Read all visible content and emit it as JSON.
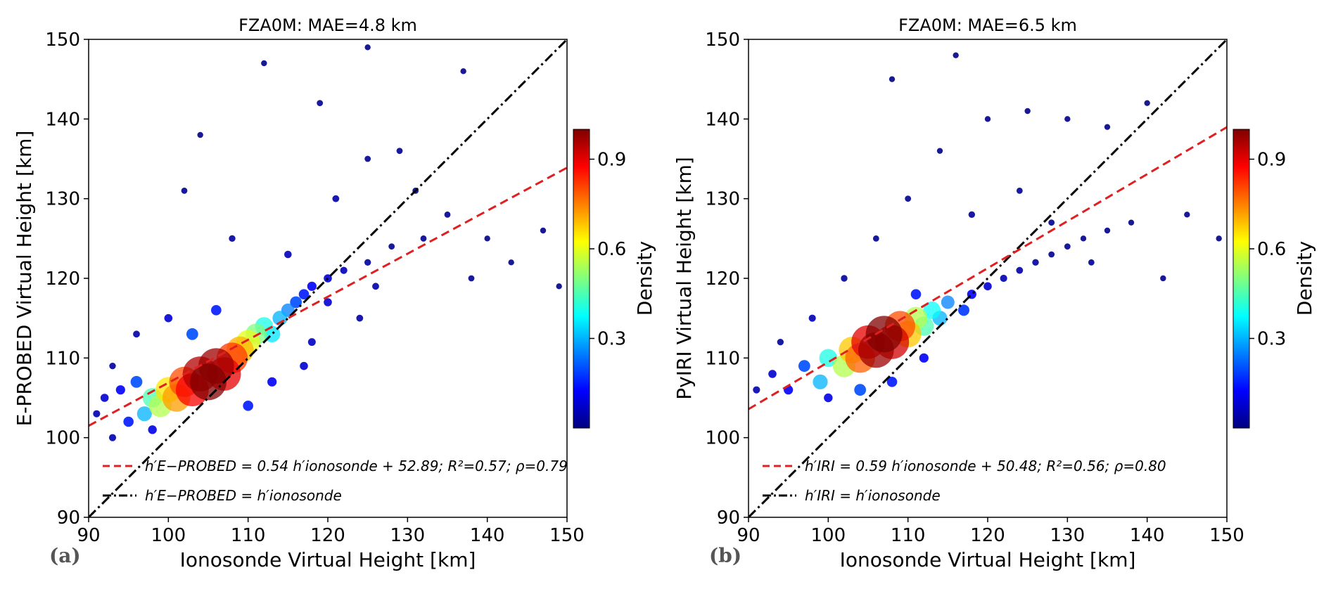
{
  "chart_data": [
    {
      "type": "scatter",
      "panel_label": "(a)",
      "title": "FZA0M: MAE=4.8 km",
      "xlabel": "Ionosonde Virtual Height [km]",
      "ylabel": "E-PROBED Virtual Height [km]",
      "xlim": [
        90,
        150
      ],
      "ylim": [
        90,
        150
      ],
      "xticks": [
        "90",
        "100",
        "110",
        "120",
        "130",
        "140",
        "150"
      ],
      "yticks": [
        "90",
        "100",
        "110",
        "120",
        "130",
        "140",
        "150"
      ],
      "colorbar": {
        "label": "Density",
        "ticks": [
          "0.3",
          "0.6",
          "0.9"
        ],
        "range": [
          0,
          1
        ]
      },
      "legend_location": "lower-right",
      "fit": {
        "slope": 0.54,
        "intercept": 52.89,
        "r2": 0.57,
        "rho": 0.79,
        "color": "#e02020"
      },
      "legend": [
        {
          "style": "dashed",
          "text": "h′E−PROBED = 0.54 h′ionosonde + 52.89; R²=0.57; ρ=0.79"
        },
        {
          "style": "dashdot",
          "text": "h′E−PROBED = h′ionosonde"
        }
      ],
      "density_points": [
        {
          "x": 91,
          "y": 103,
          "d": 0.05
        },
        {
          "x": 92,
          "y": 105,
          "d": 0.08
        },
        {
          "x": 93,
          "y": 100,
          "d": 0.05
        },
        {
          "x": 94,
          "y": 106,
          "d": 0.12
        },
        {
          "x": 95,
          "y": 102,
          "d": 0.15
        },
        {
          "x": 96,
          "y": 107,
          "d": 0.2
        },
        {
          "x": 97,
          "y": 103,
          "d": 0.3
        },
        {
          "x": 98,
          "y": 105,
          "d": 0.45
        },
        {
          "x": 99,
          "y": 104,
          "d": 0.55
        },
        {
          "x": 100,
          "y": 106,
          "d": 0.65
        },
        {
          "x": 101,
          "y": 105,
          "d": 0.72
        },
        {
          "x": 102,
          "y": 107,
          "d": 0.8
        },
        {
          "x": 103,
          "y": 106,
          "d": 0.88
        },
        {
          "x": 104,
          "y": 108,
          "d": 0.95
        },
        {
          "x": 105,
          "y": 107,
          "d": 1.0
        },
        {
          "x": 106,
          "y": 109,
          "d": 0.97
        },
        {
          "x": 107,
          "y": 108,
          "d": 0.9
        },
        {
          "x": 108,
          "y": 110,
          "d": 0.82
        },
        {
          "x": 109,
          "y": 111,
          "d": 0.7
        },
        {
          "x": 110,
          "y": 112,
          "d": 0.6
        },
        {
          "x": 111,
          "y": 113,
          "d": 0.5
        },
        {
          "x": 112,
          "y": 114,
          "d": 0.4
        },
        {
          "x": 113,
          "y": 113,
          "d": 0.35
        },
        {
          "x": 114,
          "y": 115,
          "d": 0.3
        },
        {
          "x": 115,
          "y": 116,
          "d": 0.25
        },
        {
          "x": 116,
          "y": 117,
          "d": 0.2
        },
        {
          "x": 117,
          "y": 118,
          "d": 0.15
        },
        {
          "x": 118,
          "y": 119,
          "d": 0.12
        },
        {
          "x": 120,
          "y": 120,
          "d": 0.08
        },
        {
          "x": 122,
          "y": 121,
          "d": 0.05
        },
        {
          "x": 125,
          "y": 122,
          "d": 0.03
        },
        {
          "x": 128,
          "y": 124,
          "d": 0.02
        },
        {
          "x": 103,
          "y": 113,
          "d": 0.2
        },
        {
          "x": 100,
          "y": 115,
          "d": 0.08
        },
        {
          "x": 106,
          "y": 116,
          "d": 0.15
        },
        {
          "x": 110,
          "y": 104,
          "d": 0.15
        },
        {
          "x": 113,
          "y": 107,
          "d": 0.12
        },
        {
          "x": 118,
          "y": 112,
          "d": 0.07
        },
        {
          "x": 98,
          "y": 101,
          "d": 0.1
        },
        {
          "x": 115,
          "y": 123,
          "d": 0.06
        },
        {
          "x": 121,
          "y": 130,
          "d": 0.04
        },
        {
          "x": 125,
          "y": 135,
          "d": 0.02
        },
        {
          "x": 132,
          "y": 125,
          "d": 0.02
        },
        {
          "x": 138,
          "y": 120,
          "d": 0.02
        },
        {
          "x": 143,
          "y": 122,
          "d": 0.01
        },
        {
          "x": 147,
          "y": 126,
          "d": 0.01
        },
        {
          "x": 135,
          "y": 128,
          "d": 0.02
        },
        {
          "x": 124,
          "y": 115,
          "d": 0.04
        },
        {
          "x": 108,
          "y": 125,
          "d": 0.03
        },
        {
          "x": 102,
          "y": 131,
          "d": 0.02
        },
        {
          "x": 112,
          "y": 147,
          "d": 0.01
        },
        {
          "x": 125,
          "y": 149,
          "d": 0.01
        },
        {
          "x": 119,
          "y": 142,
          "d": 0.02
        },
        {
          "x": 104,
          "y": 138,
          "d": 0.01
        },
        {
          "x": 129,
          "y": 136,
          "d": 0.02
        },
        {
          "x": 140,
          "y": 125,
          "d": 0.01
        },
        {
          "x": 149,
          "y": 119,
          "d": 0.01
        },
        {
          "x": 96,
          "y": 113,
          "d": 0.04
        },
        {
          "x": 93,
          "y": 109,
          "d": 0.03
        },
        {
          "x": 117,
          "y": 109,
          "d": 0.08
        },
        {
          "x": 120,
          "y": 117,
          "d": 0.08
        },
        {
          "x": 126,
          "y": 119,
          "d": 0.04
        },
        {
          "x": 131,
          "y": 131,
          "d": 0.02
        },
        {
          "x": 137,
          "y": 146,
          "d": 0.01
        }
      ]
    },
    {
      "type": "scatter",
      "panel_label": "(b)",
      "title": "FZA0M: MAE=6.5 km",
      "xlabel": "Ionosonde Virtual Height [km]",
      "ylabel": "PyIRI Virtual Height [km]",
      "xlim": [
        90,
        150
      ],
      "ylim": [
        90,
        150
      ],
      "xticks": [
        "90",
        "100",
        "110",
        "120",
        "130",
        "140",
        "150"
      ],
      "yticks": [
        "90",
        "100",
        "110",
        "120",
        "130",
        "140",
        "150"
      ],
      "colorbar": {
        "label": "Density",
        "ticks": [
          "0.3",
          "0.6",
          "0.9"
        ],
        "range": [
          0,
          1
        ]
      },
      "legend_location": "lower-right",
      "fit": {
        "slope": 0.59,
        "intercept": 50.48,
        "r2": 0.56,
        "rho": 0.8,
        "color": "#e02020"
      },
      "legend": [
        {
          "style": "dashed",
          "text": "h′IRI = 0.59 h′ionosonde + 50.48; R²=0.56; ρ=0.80"
        },
        {
          "style": "dashdot",
          "text": "h′IRI = h′ionosonde"
        }
      ],
      "density_points": [
        {
          "x": 91,
          "y": 106,
          "d": 0.05
        },
        {
          "x": 93,
          "y": 108,
          "d": 0.08
        },
        {
          "x": 95,
          "y": 106,
          "d": 0.12
        },
        {
          "x": 97,
          "y": 109,
          "d": 0.2
        },
        {
          "x": 99,
          "y": 107,
          "d": 0.3
        },
        {
          "x": 100,
          "y": 110,
          "d": 0.4
        },
        {
          "x": 102,
          "y": 109,
          "d": 0.55
        },
        {
          "x": 103,
          "y": 111,
          "d": 0.68
        },
        {
          "x": 104,
          "y": 110,
          "d": 0.78
        },
        {
          "x": 105,
          "y": 112,
          "d": 0.9
        },
        {
          "x": 106,
          "y": 111,
          "d": 0.97
        },
        {
          "x": 107,
          "y": 113,
          "d": 1.0
        },
        {
          "x": 108,
          "y": 112,
          "d": 0.92
        },
        {
          "x": 109,
          "y": 114,
          "d": 0.8
        },
        {
          "x": 110,
          "y": 113,
          "d": 0.68
        },
        {
          "x": 111,
          "y": 115,
          "d": 0.55
        },
        {
          "x": 112,
          "y": 114,
          "d": 0.45
        },
        {
          "x": 113,
          "y": 116,
          "d": 0.38
        },
        {
          "x": 114,
          "y": 115,
          "d": 0.3
        },
        {
          "x": 115,
          "y": 117,
          "d": 0.25
        },
        {
          "x": 117,
          "y": 116,
          "d": 0.18
        },
        {
          "x": 118,
          "y": 118,
          "d": 0.12
        },
        {
          "x": 120,
          "y": 119,
          "d": 0.08
        },
        {
          "x": 122,
          "y": 120,
          "d": 0.05
        },
        {
          "x": 124,
          "y": 121,
          "d": 0.04
        },
        {
          "x": 126,
          "y": 122,
          "d": 0.03
        },
        {
          "x": 128,
          "y": 123,
          "d": 0.02
        },
        {
          "x": 130,
          "y": 124,
          "d": 0.02
        },
        {
          "x": 132,
          "y": 125,
          "d": 0.01
        },
        {
          "x": 135,
          "y": 126,
          "d": 0.01
        },
        {
          "x": 138,
          "y": 127,
          "d": 0.01
        },
        {
          "x": 100,
          "y": 105,
          "d": 0.1
        },
        {
          "x": 104,
          "y": 106,
          "d": 0.2
        },
        {
          "x": 108,
          "y": 107,
          "d": 0.15
        },
        {
          "x": 112,
          "y": 110,
          "d": 0.12
        },
        {
          "x": 98,
          "y": 115,
          "d": 0.05
        },
        {
          "x": 102,
          "y": 120,
          "d": 0.03
        },
        {
          "x": 106,
          "y": 125,
          "d": 0.02
        },
        {
          "x": 110,
          "y": 130,
          "d": 0.02
        },
        {
          "x": 114,
          "y": 136,
          "d": 0.01
        },
        {
          "x": 120,
          "y": 140,
          "d": 0.01
        },
        {
          "x": 125,
          "y": 141,
          "d": 0.01
        },
        {
          "x": 130,
          "y": 140,
          "d": 0.01
        },
        {
          "x": 135,
          "y": 139,
          "d": 0.01
        },
        {
          "x": 140,
          "y": 142,
          "d": 0.01
        },
        {
          "x": 116,
          "y": 148,
          "d": 0.01
        },
        {
          "x": 108,
          "y": 145,
          "d": 0.01
        },
        {
          "x": 145,
          "y": 128,
          "d": 0.01
        },
        {
          "x": 149,
          "y": 125,
          "d": 0.01
        },
        {
          "x": 142,
          "y": 120,
          "d": 0.01
        },
        {
          "x": 94,
          "y": 112,
          "d": 0.03
        },
        {
          "x": 118,
          "y": 128,
          "d": 0.03
        },
        {
          "x": 124,
          "y": 131,
          "d": 0.02
        },
        {
          "x": 128,
          "y": 127,
          "d": 0.02
        },
        {
          "x": 133,
          "y": 122,
          "d": 0.02
        },
        {
          "x": 111,
          "y": 118,
          "d": 0.15
        }
      ]
    }
  ]
}
